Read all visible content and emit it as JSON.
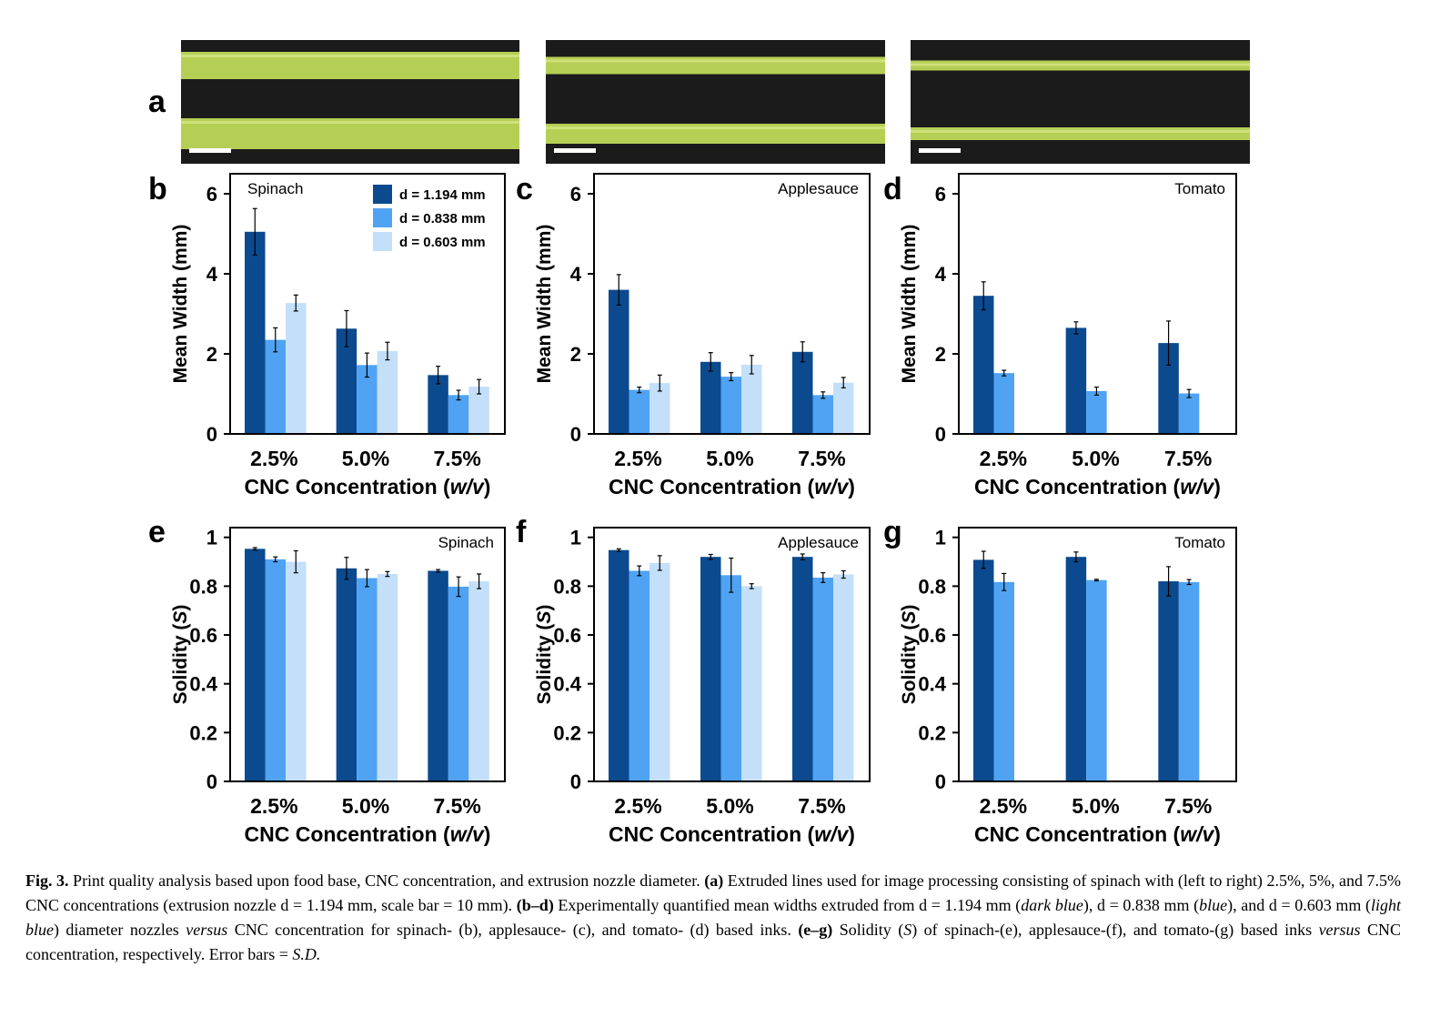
{
  "panel_letters": [
    "a",
    "b",
    "c",
    "d",
    "e",
    "f",
    "g"
  ],
  "photos": [
    {
      "label": "spinach 2.5% CNC",
      "thick": "wide"
    },
    {
      "label": "spinach 5% CNC",
      "thick": "medium"
    },
    {
      "label": "spinach 7.5% CNC",
      "thick": "thin"
    }
  ],
  "colors": {
    "dark_blue": "#0b4a8f",
    "blue": "#4fa3f2",
    "light_blue": "#c3dffa",
    "photo_bg": "#1b1b1b",
    "strand": "#b5cf55",
    "scale_bar": "#ffffff"
  },
  "legend": [
    "d = 1.194 mm",
    "d = 0.838 mm",
    "d = 0.603 mm"
  ],
  "chart_data": [
    {
      "panel": "b",
      "type": "bar",
      "annotation": "Spinach",
      "xlabel_prefix": "CNC Concentration (",
      "xlabel_italic": "w/v",
      "xlabel_suffix": ")",
      "ylabel": "Mean Width (mm)",
      "ylabel_italic": "",
      "ylim": [
        0,
        6.5
      ],
      "yticks": [
        "0",
        "2",
        "4",
        "6"
      ],
      "ytick_values": [
        0,
        2,
        4,
        6
      ],
      "categories": [
        "2.5%",
        "5.0%",
        "7.5%"
      ],
      "legend_shown": true,
      "series": [
        {
          "name": "d = 1.194 mm",
          "values": [
            5.05,
            2.63,
            1.47
          ],
          "err": [
            0.58,
            0.45,
            0.22
          ]
        },
        {
          "name": "d = 0.838 mm",
          "values": [
            2.35,
            1.72,
            0.97
          ],
          "err": [
            0.3,
            0.3,
            0.12
          ]
        },
        {
          "name": "d = 0.603 mm",
          "values": [
            3.27,
            2.07,
            1.18
          ],
          "err": [
            0.2,
            0.22,
            0.18
          ]
        }
      ]
    },
    {
      "panel": "c",
      "type": "bar",
      "annotation": "Applesauce",
      "xlabel_prefix": "CNC Concentration (",
      "xlabel_italic": "w/v",
      "xlabel_suffix": ")",
      "ylabel": "Mean Width (mm)",
      "ylabel_italic": "",
      "ylim": [
        0,
        6.5
      ],
      "yticks": [
        "0",
        "2",
        "4",
        "6"
      ],
      "ytick_values": [
        0,
        2,
        4,
        6
      ],
      "categories": [
        "2.5%",
        "5.0%",
        "7.5%"
      ],
      "legend_shown": false,
      "series": [
        {
          "name": "d = 1.194 mm",
          "values": [
            3.6,
            1.8,
            2.05
          ],
          "err": [
            0.38,
            0.23,
            0.25
          ]
        },
        {
          "name": "d = 0.838 mm",
          "values": [
            1.1,
            1.43,
            0.97
          ],
          "err": [
            0.07,
            0.1,
            0.08
          ]
        },
        {
          "name": "d = 0.603 mm",
          "values": [
            1.27,
            1.73,
            1.28
          ],
          "err": [
            0.2,
            0.23,
            0.13
          ]
        }
      ]
    },
    {
      "panel": "d",
      "type": "bar",
      "annotation": "Tomato",
      "xlabel_prefix": "CNC Concentration (",
      "xlabel_italic": "w/v",
      "xlabel_suffix": ")",
      "ylabel": "Mean Width (mm)",
      "ylabel_italic": "",
      "ylim": [
        0,
        6.5
      ],
      "yticks": [
        "0",
        "2",
        "4",
        "6"
      ],
      "ytick_values": [
        0,
        2,
        4,
        6
      ],
      "categories": [
        "2.5%",
        "5.0%",
        "7.5%"
      ],
      "legend_shown": false,
      "series": [
        {
          "name": "d = 1.194 mm",
          "values": [
            3.45,
            2.65,
            2.27
          ],
          "err": [
            0.35,
            0.15,
            0.55
          ]
        },
        {
          "name": "d = 0.838 mm",
          "values": [
            1.52,
            1.07,
            1.01
          ],
          "err": [
            0.07,
            0.1,
            0.1
          ]
        }
      ]
    },
    {
      "panel": "e",
      "type": "bar",
      "annotation": "Spinach",
      "xlabel_prefix": "CNC Concentration (",
      "xlabel_italic": "w/v",
      "xlabel_suffix": ")",
      "ylabel": "Solidity (",
      "ylabel_italic": "S",
      "ylabel_suffix": ")",
      "ylim": [
        0,
        1.04
      ],
      "yticks": [
        "0",
        "0.2",
        "0.4",
        "0.6",
        "0.8",
        "1"
      ],
      "ytick_values": [
        0,
        0.2,
        0.4,
        0.6,
        0.8,
        1
      ],
      "categories": [
        "2.5%",
        "5.0%",
        "7.5%"
      ],
      "legend_shown": false,
      "series": [
        {
          "name": "d = 1.194 mm",
          "values": [
            0.953,
            0.873,
            0.863
          ],
          "err": [
            0.005,
            0.045,
            0.005
          ]
        },
        {
          "name": "d = 0.838 mm",
          "values": [
            0.91,
            0.833,
            0.798
          ],
          "err": [
            0.01,
            0.035,
            0.04
          ]
        },
        {
          "name": "d = 0.603 mm",
          "values": [
            0.9,
            0.85,
            0.82
          ],
          "err": [
            0.045,
            0.01,
            0.03
          ]
        }
      ]
    },
    {
      "panel": "f",
      "type": "bar",
      "annotation": "Applesauce",
      "xlabel_prefix": "CNC Concentration (",
      "xlabel_italic": "w/v",
      "xlabel_suffix": ")",
      "ylabel": "Solidity (",
      "ylabel_italic": "S",
      "ylabel_suffix": ")",
      "ylim": [
        0,
        1.04
      ],
      "yticks": [
        "0",
        "0.2",
        "0.4",
        "0.6",
        "0.8",
        "1"
      ],
      "ytick_values": [
        0,
        0.2,
        0.4,
        0.6,
        0.8,
        1
      ],
      "categories": [
        "2.5%",
        "5.0%",
        "7.5%"
      ],
      "legend_shown": false,
      "series": [
        {
          "name": "d = 1.194 mm",
          "values": [
            0.948,
            0.92,
            0.92
          ],
          "err": [
            0.005,
            0.01,
            0.012
          ]
        },
        {
          "name": "d = 0.838 mm",
          "values": [
            0.863,
            0.845,
            0.835
          ],
          "err": [
            0.02,
            0.07,
            0.02
          ]
        },
        {
          "name": "d = 0.603 mm",
          "values": [
            0.895,
            0.8,
            0.848
          ],
          "err": [
            0.03,
            0.01,
            0.015
          ]
        }
      ]
    },
    {
      "panel": "g",
      "type": "bar",
      "annotation": "Tomato",
      "xlabel_prefix": "CNC Concentration (",
      "xlabel_italic": "w/v",
      "xlabel_suffix": ")",
      "ylabel": "Solidity (",
      "ylabel_italic": "S",
      "ylabel_suffix": ")",
      "ylim": [
        0,
        1.04
      ],
      "yticks": [
        "0",
        "0.2",
        "0.4",
        "0.6",
        "0.8",
        "1"
      ],
      "ytick_values": [
        0,
        0.2,
        0.4,
        0.6,
        0.8,
        1
      ],
      "categories": [
        "2.5%",
        "5.0%",
        "7.5%"
      ],
      "legend_shown": false,
      "series": [
        {
          "name": "d = 1.194 mm",
          "values": [
            0.908,
            0.92,
            0.82
          ],
          "err": [
            0.035,
            0.02,
            0.06
          ]
        },
        {
          "name": "d = 0.838 mm",
          "values": [
            0.817,
            0.825,
            0.817
          ],
          "err": [
            0.035,
            0.003,
            0.01
          ]
        }
      ]
    }
  ],
  "caption": {
    "fig_label": "Fig. 3.",
    "t1": " Print quality analysis based upon food base, CNC concentration, and extrusion nozzle diameter. ",
    "b1": "(a)",
    "t2": " Extruded lines used for image processing consisting of spinach with (left to right) 2.5%, 5%, and 7.5% CNC concentrations (extrusion nozzle d = 1.194 mm, scale bar = 10 mm). ",
    "b2": "(b–d)",
    "t3": " Experimentally quantified mean widths extruded from d = 1.194 mm (",
    "i1": "dark blue",
    "t4": "), d = 0.838 mm (",
    "i2": "blue",
    "t5": "), and d = 0.603 mm (",
    "i3": "light blue",
    "t6": ") diameter nozzles ",
    "i4": "versus",
    "t7": " CNC concentration for spinach- (b), applesauce- (c), and tomato- (d) based inks. ",
    "b3": "(e–g)",
    "t8": " Solidity (",
    "i5": "S",
    "t9": ") of spinach-(e), applesauce-(f), and tomato-(g) based inks ",
    "i6": "versus",
    "t10": " CNC concentration, respectively. Error bars = ",
    "i7": "S.D."
  }
}
